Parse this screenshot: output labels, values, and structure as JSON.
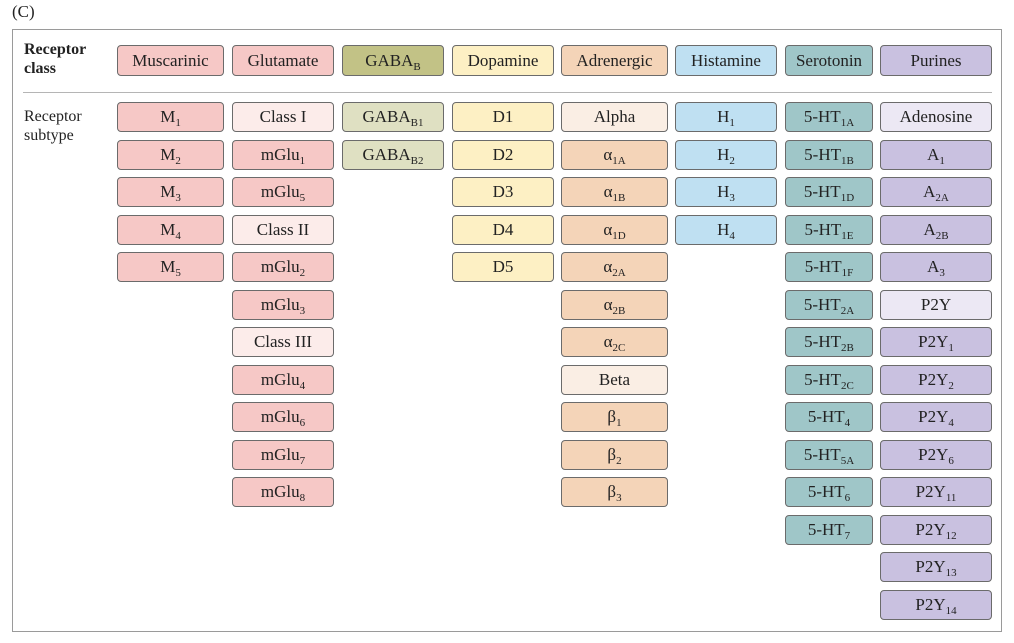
{
  "panel_label": "(C)",
  "row_labels": {
    "class": [
      "Receptor",
      "class"
    ],
    "subtype": [
      "Receptor",
      "subtype"
    ]
  },
  "columns": [
    {
      "name": "Muscarinic",
      "color": "#f6c8c6",
      "light": "#f6c8c6",
      "subtypes": [
        {
          "base": "M",
          "sub": "1"
        },
        {
          "base": "M",
          "sub": "2"
        },
        {
          "base": "M",
          "sub": "3"
        },
        {
          "base": "M",
          "sub": "4"
        },
        {
          "base": "M",
          "sub": "5"
        }
      ]
    },
    {
      "name": "Glutamate",
      "color": "#f6c8c6",
      "light": "#fcecea",
      "subtypes": [
        {
          "base": "Class I",
          "light": true
        },
        {
          "base": "mGlu",
          "sub": "1"
        },
        {
          "base": "mGlu",
          "sub": "5"
        },
        {
          "base": "Class II",
          "light": true
        },
        {
          "base": "mGlu",
          "sub": "2"
        },
        {
          "base": "mGlu",
          "sub": "3"
        },
        {
          "base": "Class III",
          "light": true
        },
        {
          "base": "mGlu",
          "sub": "4"
        },
        {
          "base": "mGlu",
          "sub": "6"
        },
        {
          "base": "mGlu",
          "sub": "7"
        },
        {
          "base": "mGlu",
          "sub": "8"
        }
      ]
    },
    {
      "name": "GABA",
      "name_sub": "B",
      "color": "#c2c286",
      "light": "#dfe0c2",
      "subtypes": [
        {
          "base": "GABA",
          "sub": "B1",
          "light": true
        },
        {
          "base": "GABA",
          "sub": "B2",
          "light": true
        }
      ]
    },
    {
      "name": "Dopamine",
      "color": "#fdf0c4",
      "light": "#fdf0c4",
      "subtypes": [
        {
          "base": "D1"
        },
        {
          "base": "D2"
        },
        {
          "base": "D3"
        },
        {
          "base": "D4"
        },
        {
          "base": "D5"
        }
      ]
    },
    {
      "name": "Adrenergic",
      "color": "#f4d4b8",
      "light": "#faeee4",
      "subtypes": [
        {
          "base": "Alpha",
          "light": true
        },
        {
          "base": "α",
          "sub": "1A"
        },
        {
          "base": "α",
          "sub": "1B"
        },
        {
          "base": "α",
          "sub": "1D"
        },
        {
          "base": "α",
          "sub": "2A"
        },
        {
          "base": "α",
          "sub": "2B"
        },
        {
          "base": "α",
          "sub": "2C"
        },
        {
          "base": "Beta",
          "light": true
        },
        {
          "base": "β",
          "sub": "1"
        },
        {
          "base": "β",
          "sub": "2"
        },
        {
          "base": "β",
          "sub": "3"
        }
      ]
    },
    {
      "name": "Histamine",
      "color": "#bfe0f2",
      "light": "#bfe0f2",
      "subtypes": [
        {
          "base": "H",
          "sub": "1"
        },
        {
          "base": "H",
          "sub": "2"
        },
        {
          "base": "H",
          "sub": "3"
        },
        {
          "base": "H",
          "sub": "4"
        }
      ]
    },
    {
      "name": "Serotonin",
      "color": "#9fc6c8",
      "light": "#c4dfe0",
      "subtypes": [
        {
          "base": "5-HT",
          "sub": "1A"
        },
        {
          "base": "5-HT",
          "sub": "1B"
        },
        {
          "base": "5-HT",
          "sub": "1D"
        },
        {
          "base": "5-HT",
          "sub": "1E"
        },
        {
          "base": "5-HT",
          "sub": "1F"
        },
        {
          "base": "5-HT",
          "sub": "2A"
        },
        {
          "base": "5-HT",
          "sub": "2B"
        },
        {
          "base": "5-HT",
          "sub": "2C"
        },
        {
          "base": "5-HT",
          "sub": "4"
        },
        {
          "base": "5-HT",
          "sub": "5A"
        },
        {
          "base": "5-HT",
          "sub": "6"
        },
        {
          "base": "5-HT",
          "sub": "7"
        }
      ]
    },
    {
      "name": "Purines",
      "color": "#c9c1e0",
      "light": "#ece8f4",
      "subtypes": [
        {
          "base": "Adenosine",
          "light": true
        },
        {
          "base": "A",
          "sub": "1"
        },
        {
          "base": "A",
          "sub": "2A"
        },
        {
          "base": "A",
          "sub": "2B"
        },
        {
          "base": "A",
          "sub": "3"
        },
        {
          "base": "P2Y",
          "light": true
        },
        {
          "base": "P2Y",
          "sub": "1"
        },
        {
          "base": "P2Y",
          "sub": "2"
        },
        {
          "base": "P2Y",
          "sub": "4"
        },
        {
          "base": "P2Y",
          "sub": "6"
        },
        {
          "base": "P2Y",
          "sub": "11"
        },
        {
          "base": "P2Y",
          "sub": "12"
        },
        {
          "base": "P2Y",
          "sub": "13"
        },
        {
          "base": "P2Y",
          "sub": "14"
        }
      ]
    }
  ]
}
